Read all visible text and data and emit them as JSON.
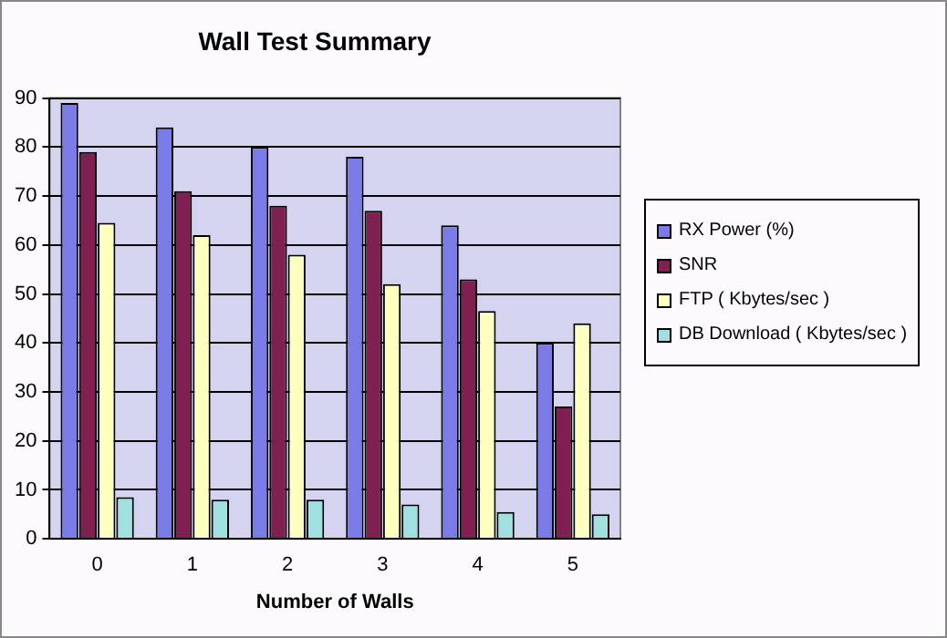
{
  "chart_data": {
    "type": "bar",
    "title": "Wall Test Summary",
    "xlabel": "Number of Walls",
    "categories": [
      "0",
      "1",
      "2",
      "3",
      "4",
      "5"
    ],
    "series": [
      {
        "name": "RX Power (%)",
        "color": "#7b7be8",
        "values": [
          89,
          84,
          80,
          78,
          64,
          40
        ]
      },
      {
        "name": "SNR",
        "color": "#802050",
        "values": [
          79,
          71,
          68,
          67,
          53,
          27
        ]
      },
      {
        "name": "FTP ( Kbytes/sec )",
        "color": "#ffffc0",
        "values": [
          64.5,
          62,
          58,
          52,
          46.5,
          44
        ]
      },
      {
        "name": "DB Download ( Kbytes/sec )",
        "color": "#a0e0e0",
        "values": [
          8.5,
          8,
          8,
          7,
          5.5,
          5
        ]
      }
    ],
    "ylim": [
      0,
      90
    ],
    "yticks": [
      0,
      10,
      20,
      30,
      40,
      50,
      60,
      70,
      80,
      90
    ],
    "grid": "y",
    "legend": "right"
  }
}
